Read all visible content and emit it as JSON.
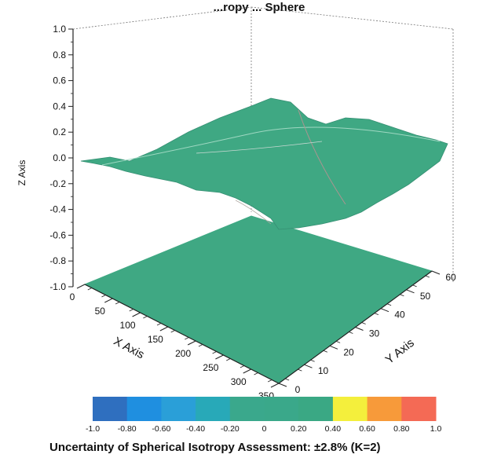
{
  "chart_data": {
    "type": "surface3d",
    "title": "...ropy ... Sphere",
    "caption": "Uncertainty of Spherical Isotropy Assessment: ±2.8% (K=2)",
    "xlabel": "X Axis",
    "ylabel": "Y Axis",
    "zlabel": "Z Axis",
    "xlim": [
      0,
      350
    ],
    "ylim": [
      0,
      60
    ],
    "zlim": [
      -1.0,
      1.0
    ],
    "x_ticks": [
      "0",
      "50",
      "100",
      "150",
      "200",
      "250",
      "300",
      "350"
    ],
    "y_ticks": [
      "0",
      "10",
      "20",
      "30",
      "40",
      "50",
      "60"
    ],
    "z_ticks": [
      "1.0",
      "0.8",
      "0.6",
      "0.4",
      "0.2",
      "0.0",
      "-0.2",
      "-0.4",
      "-0.6",
      "-0.8",
      "-1.0"
    ],
    "surface_note": "deviation surface spans roughly -0.3 to 0.3; base plane projection at z = -1.0",
    "colorbar": {
      "ticks": [
        "-1.0",
        "-0.80",
        "-0.60",
        "-0.40",
        "-0.20",
        "0",
        "0.20",
        "0.40",
        "0.60",
        "0.80",
        "1.0"
      ],
      "colors": [
        "#2f6fbf",
        "#1f8fe0",
        "#2a9fd8",
        "#28a9b8",
        "#3aa88c",
        "#3aa88a",
        "#3aa884",
        "#f4ef3c",
        "#f79a3a",
        "#f46a55"
      ],
      "surface_color": "#3fa883"
    }
  }
}
